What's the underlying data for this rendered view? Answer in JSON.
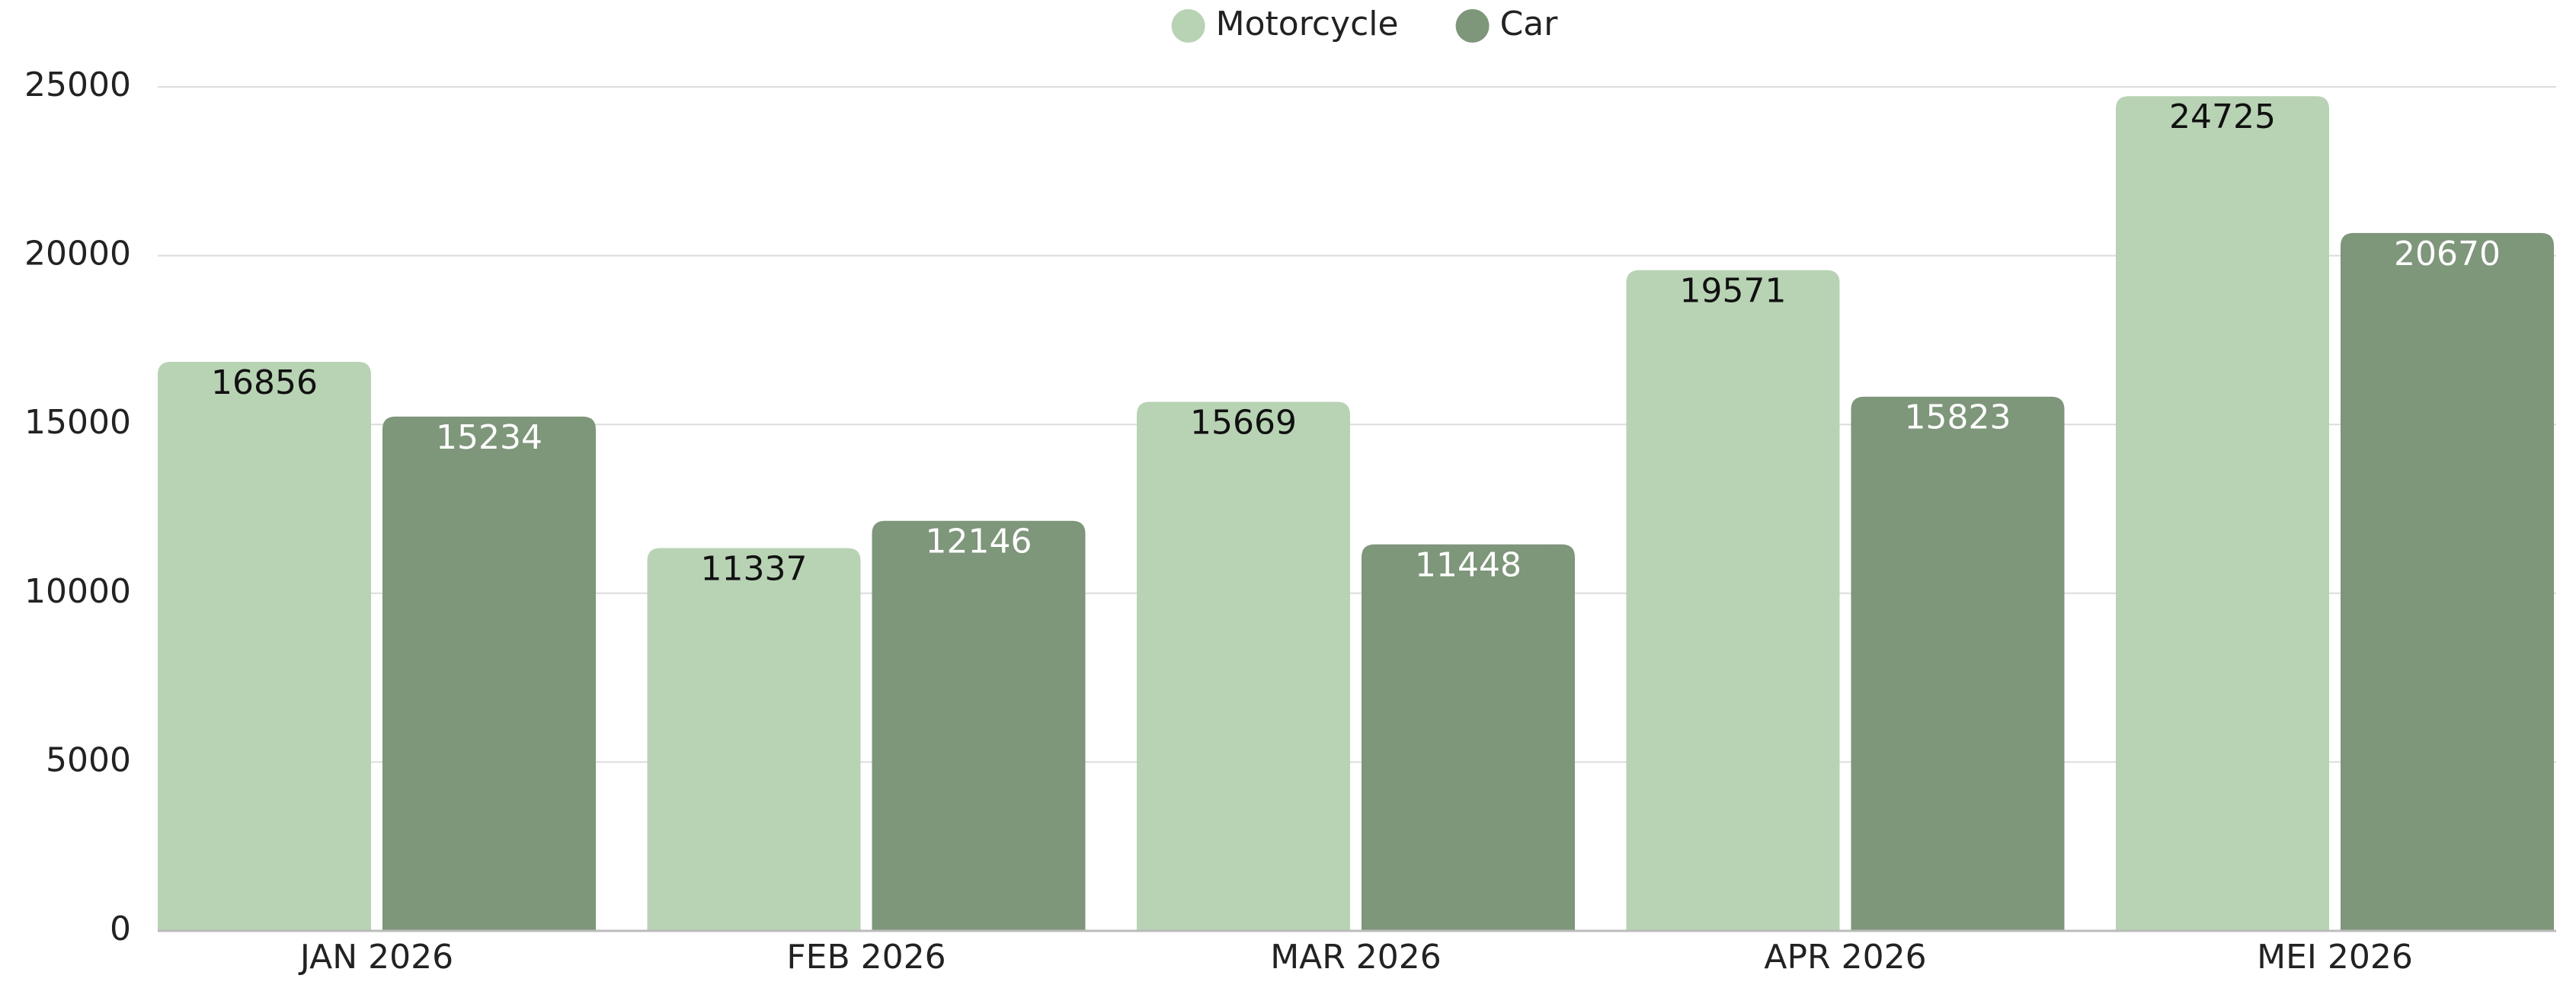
{
  "chart_data": {
    "type": "bar",
    "categories": [
      "JAN 2026",
      "FEB 2026",
      "MAR 2026",
      "APR 2026",
      "MEI 2026"
    ],
    "series": [
      {
        "name": "Motorcycle",
        "color": "#b8d3b4",
        "values": [
          16856,
          11337,
          15669,
          19571,
          24725
        ]
      },
      {
        "name": "Car",
        "color": "#7e967a",
        "values": [
          15234,
          12146,
          11448,
          15823,
          20670
        ]
      }
    ],
    "ylim": [
      0,
      25000
    ],
    "yticks": [
      0,
      5000,
      10000,
      15000,
      20000,
      25000
    ],
    "grid": true,
    "legend": "top"
  }
}
